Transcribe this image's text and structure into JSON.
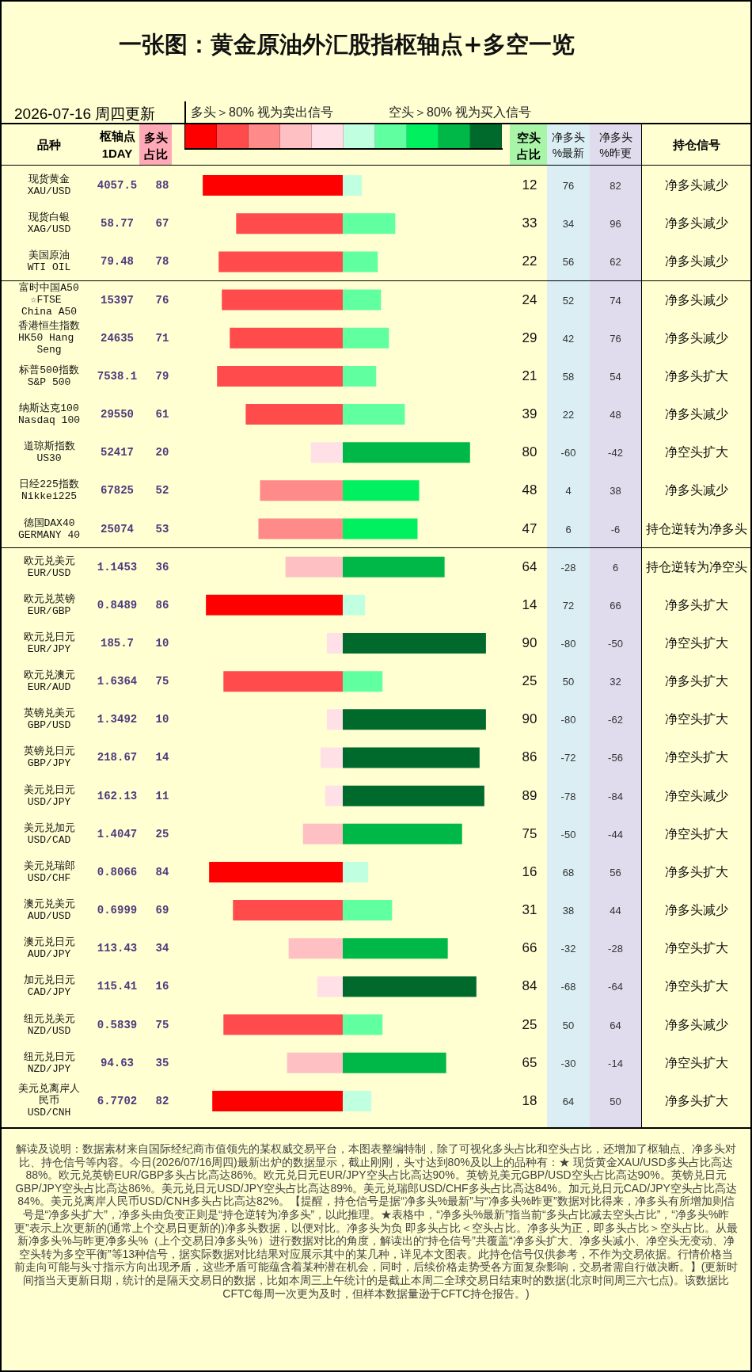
{
  "chart_data": [
    {
      "type": "bar",
      "orientation": "horizontal",
      "title": "一张图：黄金原油外汇股指枢轴点+多空一览",
      "subtitle": "2026-07-16 周四更新",
      "ylabel": "品种",
      "xlabel": "多头占比",
      "annotations": [
        "多头＞80% 视为卖出信号"
      ],
      "categories": [
        "现货黄金\nXAU/USD",
        "现货白银\nXAG/USD",
        "美国原油\nWTI OIL",
        "富时中国A50\n☆FTSE China A50",
        "香港恒生指数\nHK50 Hang Seng",
        "标普500指数\nS&P 500",
        "纳斯达克100\nNasdaq 100",
        "道琼斯指数\nUS30",
        "日经225指数\nNikkei225",
        "德国DAX40\nGERMANY 40",
        "欧元兑美元\nEUR/USD",
        "欧元兑英镑\nEUR/GBP",
        "欧元兑日元\nEUR/JPY",
        "欧元兑澳元\nEUR/AUD",
        "英镑兑美元\nGBP/USD",
        "英镑兑日元\nGBP/JPY",
        "美元兑日元\nUSD/JPY",
        "美元兑加元\nUSD/CAD",
        "美元兑瑞郎\nUSD/CHF",
        "澳元兑美元\nAUD/USD",
        "澳元兑日元\nAUD/JPY",
        "加元兑日元\nCAD/JPY",
        "纽元兑美元\nNZD/USD",
        "纽元兑日元\nNZD/JPY",
        "美元兑离岸人民币\nUSD/CNH"
      ],
      "values": [
        88,
        67,
        78,
        76,
        71,
        79,
        61,
        20,
        52,
        53,
        36,
        86,
        10,
        75,
        10,
        14,
        11,
        25,
        84,
        69,
        34,
        16,
        75,
        35,
        82
      ],
      "colors": [
        "#ff0000",
        "#ff4b4b",
        "#ff4b4b",
        "#ff4b4b",
        "#ff4b4b",
        "#ff4b4b",
        "#ff4b4b",
        "#ffe0e6",
        "#ff8a8a",
        "#ff8a8a",
        "#ffc0c4",
        "#ff0000",
        "#ffe0e6",
        "#ff4b4b",
        "#ffe0e6",
        "#ffe0e6",
        "#ffe0e6",
        "#ffc0c4",
        "#ff0000",
        "#ff4b4b",
        "#ffc0c4",
        "#ffe0e6",
        "#ff4b4b",
        "#ffc0c4",
        "#ff0000"
      ],
      "data_labels": true,
      "tick_labels": "y"
    },
    {
      "type": "other",
      "title": "枢轴点\n1DAY",
      "values": [
        4057.5,
        58.77,
        79.48,
        15397,
        24635,
        7538.1,
        29550,
        52417,
        67825,
        25074,
        1.1453,
        0.8489,
        185.7,
        1.6364,
        1.3492,
        218.67,
        162.13,
        1.4047,
        0.8066,
        0.6999,
        113.43,
        115.41,
        0.5839,
        94.63,
        6.7702
      ],
      "data_labels": true
    },
    {
      "type": "bar",
      "orientation": "horizontal",
      "xlabel": "空头占比",
      "annotations": [
        "空头＞80% 视为买入信号"
      ],
      "categories": [
        "现货黄金\nXAU/USD",
        "现货白银\nXAG/USD",
        "美国原油\nWTI OIL",
        "富时中国A50\n☆FTSE China A50",
        "香港恒生指数\nHK50 Hang Seng",
        "标普500指数\nS&P 500",
        "纳斯达克100\nNasdaq 100",
        "道琼斯指数\nUS30",
        "日经225指数\nNikkei225",
        "德国DAX40\nGERMANY 40",
        "欧元兑美元\nEUR/USD",
        "欧元兑英镑\nEUR/GBP",
        "欧元兑日元\nEUR/JPY",
        "欧元兑澳元\nEUR/AUD",
        "英镑兑美元\nGBP/USD",
        "英镑兑日元\nGBP/JPY",
        "美元兑日元\nUSD/JPY",
        "美元兑加元\nUSD/CAD",
        "美元兑瑞郎\nUSD/CHF",
        "澳元兑美元\nAUD/USD",
        "澳元兑日元\nAUD/JPY",
        "加元兑日元\nCAD/JPY",
        "纽元兑美元\nNZD/USD",
        "纽元兑日元\nNZD/JPY",
        "美元兑离岸人民币\nUSD/CNH"
      ],
      "values": [
        12,
        33,
        22,
        24,
        29,
        21,
        39,
        80,
        48,
        47,
        64,
        14,
        90,
        25,
        90,
        86,
        89,
        75,
        16,
        31,
        66,
        84,
        25,
        65,
        18
      ],
      "colors": [
        "#c0ffe0",
        "#60ffa0",
        "#60ffa0",
        "#60ffa0",
        "#60ffa0",
        "#60ffa0",
        "#60ffa0",
        "#00b848",
        "#00f060",
        "#00f060",
        "#00b848",
        "#c0ffe0",
        "#006a2c",
        "#60ffa0",
        "#006a2c",
        "#006a2c",
        "#006a2c",
        "#00b848",
        "#c0ffe0",
        "#60ffa0",
        "#00b848",
        "#006a2c",
        "#60ffa0",
        "#00b848",
        "#c0ffe0"
      ],
      "data_labels": true,
      "tick_labels": false
    },
    {
      "type": "other",
      "title": "净多头\n%最新",
      "values": [
        76,
        34,
        56,
        52,
        42,
        58,
        22,
        -60,
        4,
        6,
        -28,
        72,
        -80,
        50,
        -80,
        -72,
        -78,
        -50,
        68,
        38,
        -32,
        -68,
        50,
        -30,
        64
      ],
      "data_labels": true
    },
    {
      "type": "other",
      "title": "净多头\n%昨更",
      "values": [
        82,
        96,
        62,
        74,
        76,
        54,
        48,
        -42,
        38,
        -6,
        6,
        66,
        -50,
        32,
        -62,
        -56,
        -84,
        -44,
        56,
        44,
        -28,
        -64,
        64,
        -14,
        50
      ],
      "data_labels": true
    },
    {
      "type": "other",
      "title": "持仓信号",
      "annotations": [
        "净多头减少",
        "净多头减少",
        "净多头减少",
        "净多头减少",
        "净多头减少",
        "净多头扩大",
        "净多头减少",
        "净空头扩大",
        "净多头减少",
        "持仓逆转为净多头",
        "持仓逆转为净空头",
        "净多头扩大",
        "净空头扩大",
        "净多头扩大",
        "净空头扩大",
        "净空头扩大",
        "净空头减少",
        "净空头扩大",
        "净多头扩大",
        "净多头减少",
        "净空头扩大",
        "净空头扩大",
        "净多头减少",
        "净空头扩大",
        "净多头扩大"
      ]
    },
    {
      "type": "other",
      "annotations": [
        "解读及说明：数据素材来自国际经纪商市值领先的某权威交易平台，本图表整编特制，除了可视化多头占比和空头占比，还增加了枢轴点、净多头对比、持仓信号等内容。今日(2026/07/16周四)最新出炉的数据显示，截止刚刚，头寸达到80%及以上的品种有：★ 现货黄金XAU/USD多头占比高达88%。欧元兑英镑EUR/GBP多头占比高达86%。欧元兑日元EUR/JPY空头占比高达90%。英镑兑美元GBP/USD空头占比高达90%。英镑兑日元GBP/JPY空头占比高达86%。美元兑日元USD/JPY空头占比高达89%。美元兑瑞郎USD/CHF多头占比高达84%。加元兑日元CAD/JPY空头占比高达84%。美元兑离岸人民币USD/CNH多头占比高达82%。【提醒，持仓信号是据“净多头%最新”与“净多头%昨更”数据对比得来，净多头有所增加则信号是“净多头扩大”，净多头由负变正则是“持仓逆转为净多头”，以此推理。★表格中，“净多头%最新”指当前“多头占比减去空头占比”，“净多头%昨更”表示上次更新的(通常上个交易日更新的)净多头数据，以便对比。净多头为负 即多头占比＜空头占比。净多头为正，即多头占比＞空头占比。从最新净多头%与昨更净多头%（上个交易日净多头%）进行数据对比的角度，解读出的“持仓信号”共覆盖“净多头扩大、净多头减小、净空头无变动、净空头转为多空平衡”等13种信号，据实际数据对比结果对应展示其中的某几种，详见本文图表。此持仓信号仅供参考，不作为交易依据。行情价格当前走向可能与头寸指示方向出现矛盾，这些矛盾可能蕴含着某种潜在机会，同时，后续价格走势受各方面复杂影响，交易者需自行做决断。】(更新时间指当天更新日期，统计的是隔天交易日的数据，比如本周三上午统计的是截止本周二全球交易日结束时的数据(北京时间周三六七点)。该数据比CFTC每周一次更为及时，但样本数据量逊于CFTC持仓报告。)"
      ]
    }
  ]
}
